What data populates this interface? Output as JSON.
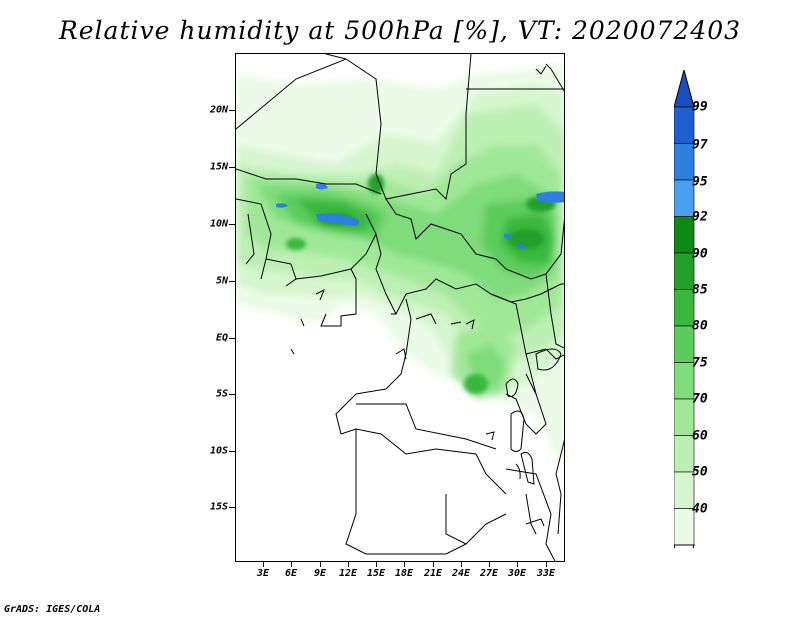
{
  "title": "Relative humidity at 500hPa [%], VT: 2020072403",
  "footer": "GrADS: IGES/COLA",
  "map": {
    "y_ticks": [
      "20N",
      "15N",
      "10N",
      "5N",
      "EQ",
      "5S",
      "10S",
      "15S"
    ],
    "x_ticks": [
      "3E",
      "6E",
      "9E",
      "12E",
      "15E",
      "18E",
      "21E",
      "24E",
      "27E",
      "30E",
      "33E"
    ]
  },
  "colorbar": {
    "levels": [
      "99",
      "97",
      "95",
      "92",
      "90",
      "85",
      "80",
      "75",
      "70",
      "60",
      "50",
      "40"
    ],
    "colors": [
      "#1f5fd0",
      "#2f7fe0",
      "#4aa0f0",
      "#0c8a14",
      "#22a02a",
      "#39b83c",
      "#5ccc5c",
      "#7fdc7a",
      "#a0e898",
      "#bdf0b4",
      "#d6f6cf",
      "#ebfbe7"
    ]
  }
}
